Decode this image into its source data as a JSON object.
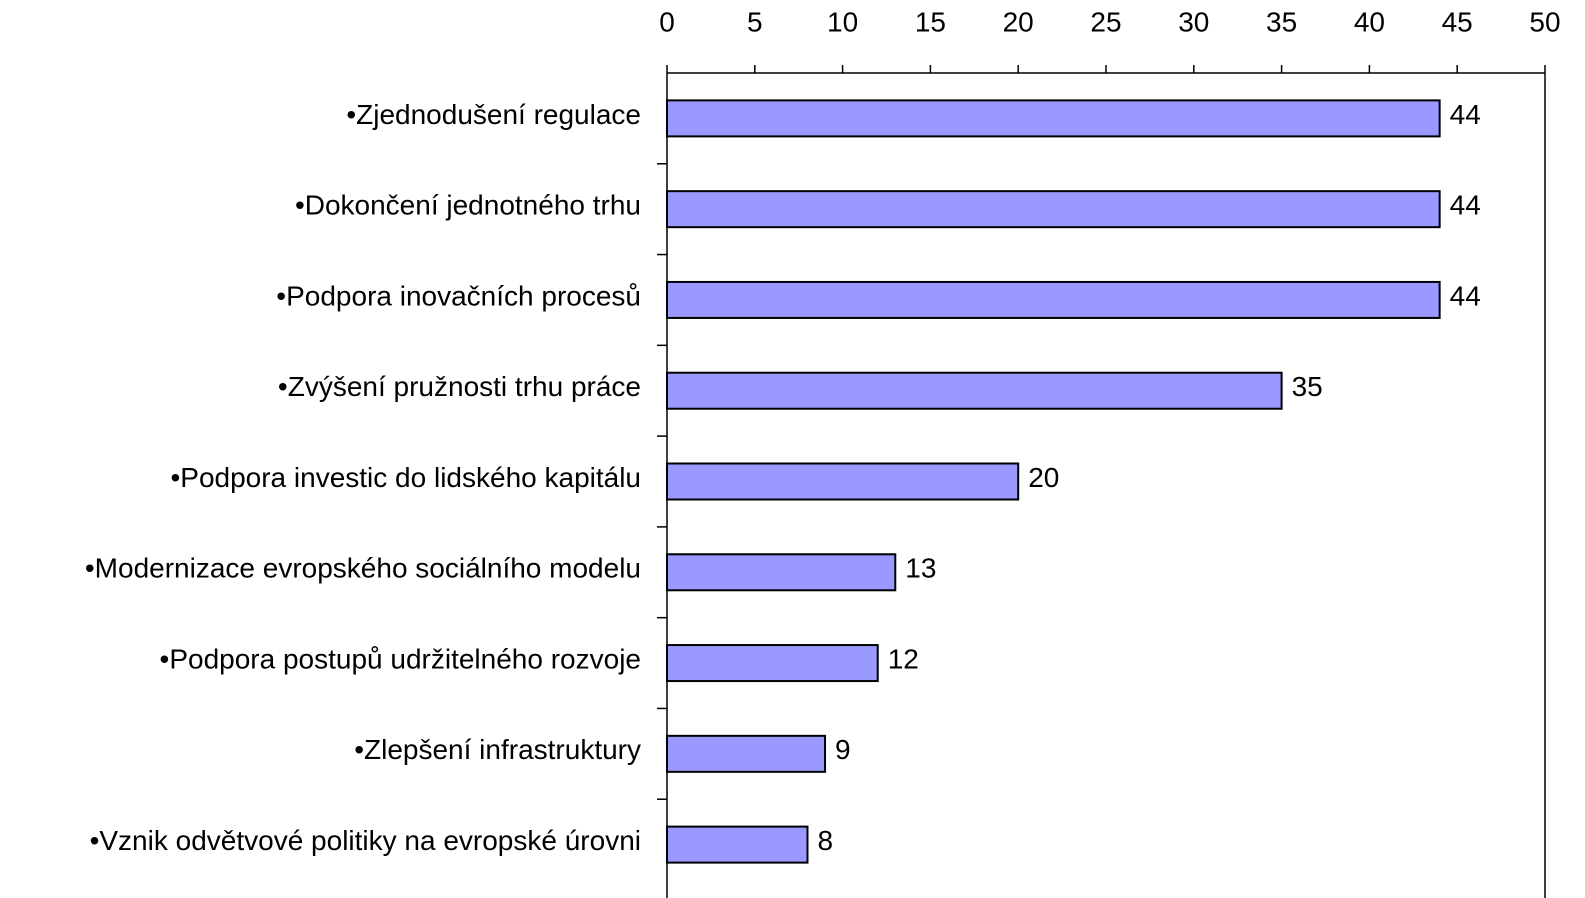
{
  "chart_data": {
    "type": "bar",
    "orientation": "horizontal",
    "categories": [
      "•Zjednodušení regulace",
      "•Dokončení jednotného trhu",
      "•Podpora inovačních procesů",
      "•Zvýšení pružnosti trhu práce",
      "•Podpora investic do lidského kapitálu",
      "•Modernizace evropského sociálního modelu",
      "•Podpora postupů udržitelného rozvoje",
      "•Zlepšení infrastruktury",
      "•Vznik odvětvové politiky na evropské úrovni"
    ],
    "values": [
      44,
      44,
      44,
      35,
      20,
      13,
      12,
      9,
      8
    ],
    "color": "#9999ff",
    "xlim": [
      0,
      50
    ],
    "xticks": [
      0,
      5,
      10,
      15,
      20,
      25,
      30,
      35,
      40,
      45,
      50
    ]
  }
}
